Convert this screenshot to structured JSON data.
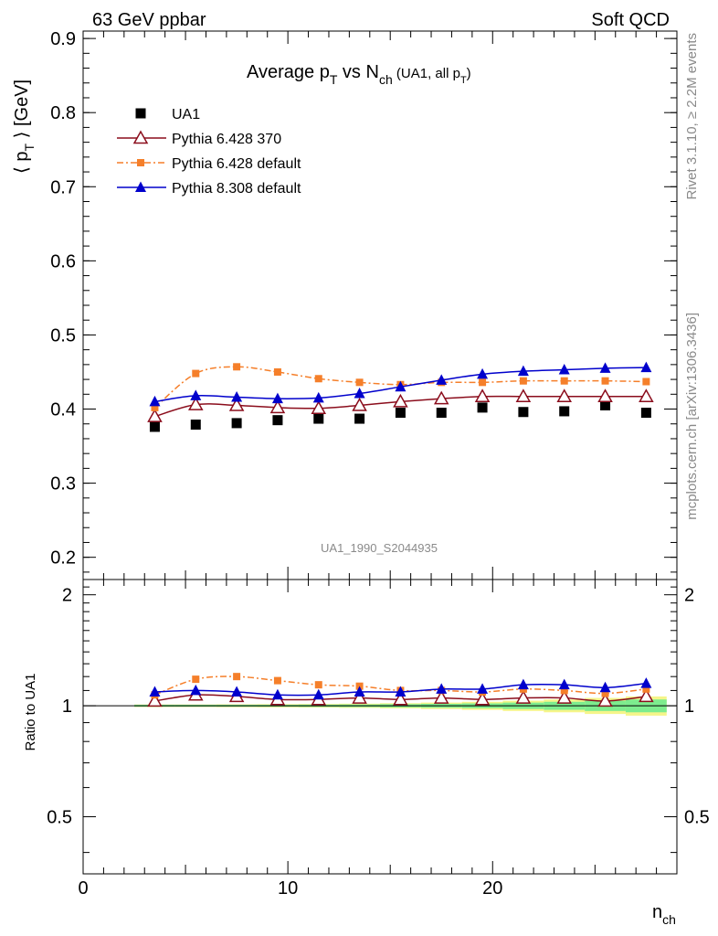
{
  "header": {
    "left": "63 GeV ppbar",
    "right": "Soft QCD"
  },
  "side_labels": {
    "top": "Rivet 3.1.10, ≥ 2.2M events",
    "bottom": "mcplots.cern.ch [arXiv:1306.3436]"
  },
  "watermark": "UA1_1990_S2044935",
  "chart_data": [
    {
      "type": "scatter",
      "title_main": "Average p",
      "title_sub_t": "T",
      "title_vs": " vs N",
      "title_sub_ch": "ch",
      "title_paren": " (UA1, all p",
      "title_paren_sub": "T",
      "title_paren_end": ")",
      "ylabel_pre": "⟨ p",
      "ylabel_sub": "T",
      "ylabel_post": " ⟩ [GeV]",
      "xlim": [
        0,
        29
      ],
      "ylim": [
        0.17,
        0.91
      ],
      "yticks": [
        "0.2",
        "0.3",
        "0.4",
        "0.5",
        "0.6",
        "0.7",
        "0.8",
        "0.9"
      ],
      "x": [
        3.5,
        5.5,
        7.5,
        9.5,
        11.5,
        13.5,
        15.5,
        17.5,
        19.5,
        21.5,
        23.5,
        25.5,
        27.5
      ],
      "series": [
        {
          "name": "UA1",
          "color": "#000000",
          "marker": "square",
          "values": [
            0.376,
            0.379,
            0.381,
            0.385,
            0.387,
            0.387,
            0.395,
            0.395,
            0.402,
            0.396,
            0.397,
            0.405,
            0.395
          ]
        },
        {
          "name": "Pythia 6.428 370",
          "color": "#8b0d1c",
          "marker": "open-triangle",
          "values": [
            0.39,
            0.406,
            0.405,
            0.402,
            0.401,
            0.405,
            0.41,
            0.414,
            0.417,
            0.417,
            0.417,
            0.417,
            0.417
          ]
        },
        {
          "name": "Pythia 6.428 default",
          "color": "#f57f2a",
          "marker": "small-square",
          "values": [
            0.402,
            0.448,
            0.457,
            0.45,
            0.441,
            0.436,
            0.433,
            0.436,
            0.436,
            0.438,
            0.438,
            0.438,
            0.437
          ]
        },
        {
          "name": "Pythia 8.308 default",
          "color": "#0000cc",
          "marker": "filled-triangle",
          "values": [
            0.41,
            0.418,
            0.416,
            0.414,
            0.415,
            0.421,
            0.43,
            0.439,
            0.447,
            0.451,
            0.453,
            0.455,
            0.456
          ]
        }
      ]
    },
    {
      "type": "scatter",
      "ylabel": "Ratio to UA1",
      "xlabel_main": "n",
      "xlabel_sub": "ch",
      "xlim": [
        0,
        29
      ],
      "ylim": [
        0.35,
        2.2
      ],
      "log_y": true,
      "yticks": [
        "0.5",
        "1",
        "2"
      ],
      "xticks": [
        "0",
        "10",
        "20"
      ],
      "x": [
        3.5,
        5.5,
        7.5,
        9.5,
        11.5,
        13.5,
        15.5,
        17.5,
        19.5,
        21.5,
        23.5,
        25.5,
        27.5
      ],
      "series": [
        {
          "name": "Pythia 6.428 370",
          "values": [
            1.03,
            1.07,
            1.06,
            1.04,
            1.04,
            1.05,
            1.04,
            1.05,
            1.04,
            1.05,
            1.05,
            1.03,
            1.06
          ]
        },
        {
          "name": "Pythia 6.428 default",
          "values": [
            1.07,
            1.18,
            1.2,
            1.17,
            1.14,
            1.13,
            1.1,
            1.1,
            1.09,
            1.11,
            1.1,
            1.08,
            1.11
          ]
        },
        {
          "name": "Pythia 8.308 default",
          "values": [
            1.09,
            1.1,
            1.09,
            1.07,
            1.07,
            1.09,
            1.09,
            1.11,
            1.11,
            1.14,
            1.14,
            1.12,
            1.15
          ]
        }
      ],
      "uncertainty": {
        "stat_color": "#7dec8e",
        "total_color": "#f5f58a",
        "stat_halfwidth": [
          0.006,
          0.006,
          0.006,
          0.006,
          0.007,
          0.008,
          0.01,
          0.012,
          0.015,
          0.02,
          0.025,
          0.032,
          0.04
        ],
        "total_halfwidth": [
          0.008,
          0.008,
          0.009,
          0.01,
          0.011,
          0.013,
          0.016,
          0.02,
          0.025,
          0.032,
          0.04,
          0.05,
          0.06
        ]
      }
    }
  ]
}
